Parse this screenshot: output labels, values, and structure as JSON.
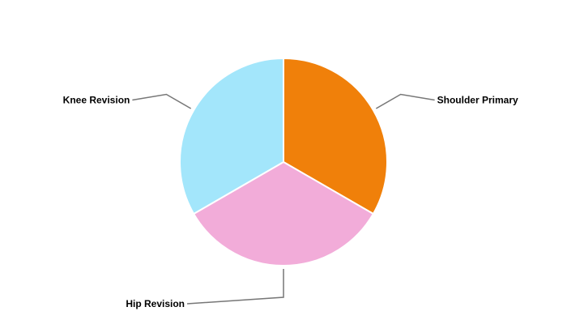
{
  "chart_data": {
    "type": "pie",
    "title": "",
    "start_angle": "12 o'clock, clockwise",
    "slices": [
      {
        "label": "Shoulder Primary",
        "value": 1,
        "color": "#f0800a"
      },
      {
        "label": "Hip Revision",
        "value": 1,
        "color": "#f2acd9"
      },
      {
        "label": "Knee Revision",
        "value": 1,
        "color": "#a3e6fb"
      }
    ],
    "leader_line_color": "#777777",
    "slice_border_color": "#ffffff"
  }
}
